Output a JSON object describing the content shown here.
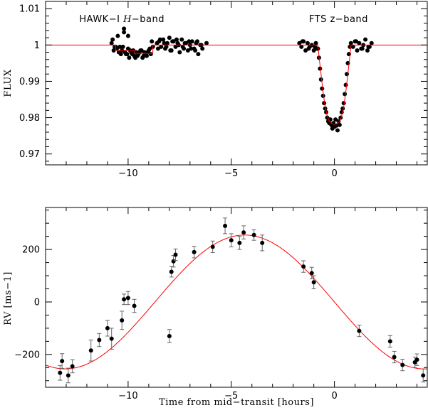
{
  "chart_data": [
    {
      "type": "scatter",
      "panel": "top",
      "ylabel": "FLUX",
      "xlim": [
        -14,
        4.5
      ],
      "ylim": [
        0.967,
        1.012
      ],
      "x_ticks": [
        -10,
        -5,
        0
      ],
      "x_tick_labels": [
        "−10",
        "−5",
        "0"
      ],
      "y_ticks": [
        0.97,
        0.98,
        0.99,
        1,
        1.01
      ],
      "y_tick_labels": [
        "0.97",
        "0.98",
        "0.99",
        "1",
        "1.01"
      ],
      "annotations": [
        {
          "text_pre": "HAWK−I ",
          "text_italic": "H",
          "text_post": "−band",
          "x": -10.3,
          "y": 1.0063
        },
        {
          "text_pre": "FTS z−band",
          "text_italic": "",
          "text_post": "",
          "x": 0.2,
          "y": 1.0063
        }
      ],
      "series": [
        {
          "kind": "model",
          "color": "#ff0000",
          "x": [
            -14,
            -10.6,
            -10.6,
            -9.7,
            -9.7,
            -8.8,
            -8.8,
            -0.8,
            -0.75,
            -0.65,
            -0.55,
            -0.45,
            -0.35,
            -0.25,
            -0.1,
            0.0,
            0.1,
            0.25,
            0.35,
            0.45,
            0.55,
            0.65,
            0.75,
            0.8,
            4.5
          ],
          "y": [
            1.0,
            1.0,
            0.9985,
            0.9985,
            0.9977,
            0.9977,
            1.0,
            1.0,
            0.997,
            0.992,
            0.987,
            0.983,
            0.9805,
            0.979,
            0.9783,
            0.9782,
            0.9783,
            0.979,
            0.9805,
            0.983,
            0.987,
            0.992,
            0.997,
            1.0,
            1.0
          ]
        },
        {
          "kind": "data",
          "color": "#000000",
          "x": [
            -10.8,
            -10.7,
            -10.6,
            -10.5,
            -10.4,
            -10.3,
            -10.2,
            -10.1,
            -10.0,
            -9.9,
            -9.8,
            -9.7,
            -9.6,
            -9.5,
            -9.4,
            -9.3,
            -9.2,
            -9.1,
            -9.0,
            -8.9,
            -8.8,
            -10.75,
            -10.55,
            -10.35,
            -10.15,
            -9.95,
            -9.75,
            -9.55,
            -9.35,
            -9.15,
            -8.95,
            -10.65,
            -10.45,
            -10.25,
            -10.05,
            -9.85,
            -9.65,
            -9.45,
            -9.25,
            -9.05,
            -8.85,
            -10.2,
            -10.0,
            -8.6,
            -8.5,
            -8.4,
            -8.3,
            -8.2,
            -8.1,
            -8.0,
            -7.9,
            -7.8,
            -7.7,
            -7.6,
            -7.5,
            -7.4,
            -7.3,
            -7.2,
            -7.1,
            -7.0,
            -6.9,
            -6.8,
            -6.7,
            -6.6,
            -6.5,
            -6.4,
            -6.2,
            -8.55,
            -8.25,
            -7.95,
            -7.65,
            -7.35,
            -7.05,
            -6.75,
            -6.45,
            -8.45,
            -8.15,
            -7.85,
            -7.55,
            -7.25,
            -6.95,
            -6.65,
            -1.7,
            -1.6,
            -1.5,
            -1.4,
            -1.3,
            -1.2,
            -1.1,
            -1.0,
            -0.9,
            -1.55,
            -1.25,
            -0.95,
            -0.85,
            -0.8,
            -0.75,
            -0.7,
            -0.65,
            -0.6,
            -0.55,
            -0.5,
            -0.45,
            -0.4,
            -0.35,
            -0.3,
            -0.25,
            -0.2,
            -0.15,
            -0.1,
            -0.05,
            0.0,
            0.05,
            0.1,
            0.15,
            0.2,
            0.25,
            0.3,
            0.35,
            0.4,
            0.45,
            0.5,
            0.55,
            0.6,
            0.65,
            0.7,
            0.75,
            0.8,
            0.9,
            1.0,
            1.1,
            1.2,
            1.3,
            1.4,
            1.5,
            1.6,
            1.7,
            1.8,
            1.05,
            1.35,
            1.65
          ],
          "y": [
            1.0005,
            0.9985,
            0.9995,
            1.0025,
            0.9995,
            0.9985,
            1.0045,
            0.9975,
            0.999,
            0.9985,
            0.9975,
            0.997,
            0.998,
            0.9975,
            0.9985,
            0.9965,
            0.998,
            0.997,
            0.9985,
            0.9975,
            0.9995,
            1.0015,
            0.999,
            0.9975,
            0.998,
            0.9965,
            0.9985,
            0.997,
            0.9985,
            0.9975,
            0.999,
            0.9995,
            0.998,
            0.9995,
            0.9975,
            0.998,
            0.9965,
            0.998,
            0.997,
            0.998,
            1.001,
            1.0035,
            1.0025,
            1.0005,
            1.001,
            0.9995,
            1.0015,
            0.999,
            1.0005,
            1.002,
            0.9985,
            1.001,
            0.9995,
            1.0005,
            0.998,
            1.0015,
            0.999,
            1.0005,
            0.9985,
            1.0,
            1.001,
            0.999,
            1.0005,
            0.9975,
            1.0,
            0.999,
            1.0005,
            0.999,
            1.0005,
            0.9985,
            1.0015,
            0.9995,
            1.001,
            0.9985,
            1.0,
            1.0015,
            0.9995,
            1.001,
            1.0,
            1.0005,
            0.999,
            1.001,
            1.0005,
            0.9995,
            1.001,
            0.9985,
            1.0005,
            0.9995,
            1.0,
            0.9985,
            1.0005,
            1.001,
            0.999,
            0.9995,
            0.999,
            0.999,
            0.9965,
            0.9935,
            0.9905,
            0.988,
            0.986,
            0.984,
            0.9825,
            0.9815,
            0.98,
            0.979,
            0.9785,
            0.9795,
            0.978,
            0.977,
            0.9785,
            0.9775,
            0.9795,
            0.9778,
            0.9765,
            0.979,
            0.978,
            0.98,
            0.9815,
            0.9825,
            0.984,
            0.9865,
            0.989,
            0.992,
            0.995,
            0.9975,
            0.9995,
            1.0005,
            0.9995,
            1.001,
            0.9985,
            1.0005,
            0.999,
            1.0,
            1.0015,
            0.9985,
            0.9995,
            1.0005,
            1.001,
            0.999,
            0.9995
          ]
        }
      ]
    },
    {
      "type": "scatter",
      "panel": "bottom",
      "xlabel": "Time from mid−transit [hours]",
      "ylabel": "RV [ms−1]",
      "xlim": [
        -14,
        4.5
      ],
      "ylim": [
        -325,
        360
      ],
      "x_ticks": [
        -10,
        -5,
        0
      ],
      "x_tick_labels": [
        "−10",
        "−5",
        "0"
      ],
      "y_ticks": [
        -200,
        0,
        200
      ],
      "y_tick_labels": [
        "−200",
        "0",
        "200"
      ],
      "series": [
        {
          "kind": "model",
          "color": "#ff0000",
          "amplitude": 255,
          "period_hours": 17.4,
          "center": -4.35,
          "x_range": [
            -14,
            4.5
          ]
        },
        {
          "kind": "data",
          "color": "#000000",
          "x": [
            -13.3,
            -13.2,
            -12.9,
            -12.7,
            -11.8,
            -11.4,
            -11.0,
            -10.8,
            -10.3,
            -10.2,
            -10.0,
            -9.7,
            -8.0,
            -7.9,
            -7.8,
            -7.7,
            -6.8,
            -5.9,
            -5.3,
            -5.0,
            -4.6,
            -4.4,
            -3.9,
            -3.5,
            -1.5,
            -1.1,
            -1.0,
            1.2,
            2.7,
            2.9,
            3.3,
            3.9,
            4.0,
            4.3
          ],
          "y": [
            -270,
            -225,
            -280,
            -245,
            -185,
            -145,
            -100,
            -140,
            -70,
            10,
            15,
            -15,
            -130,
            115,
            155,
            180,
            190,
            210,
            290,
            235,
            225,
            265,
            255,
            225,
            135,
            110,
            75,
            -110,
            -150,
            -210,
            -240,
            -230,
            -220,
            -280
          ],
          "err": [
            28,
            28,
            28,
            25,
            40,
            25,
            30,
            40,
            35,
            20,
            25,
            25,
            25,
            20,
            22,
            22,
            22,
            22,
            30,
            25,
            25,
            25,
            20,
            30,
            22,
            22,
            25,
            22,
            22,
            22,
            22,
            20,
            22,
            25
          ]
        }
      ]
    }
  ]
}
